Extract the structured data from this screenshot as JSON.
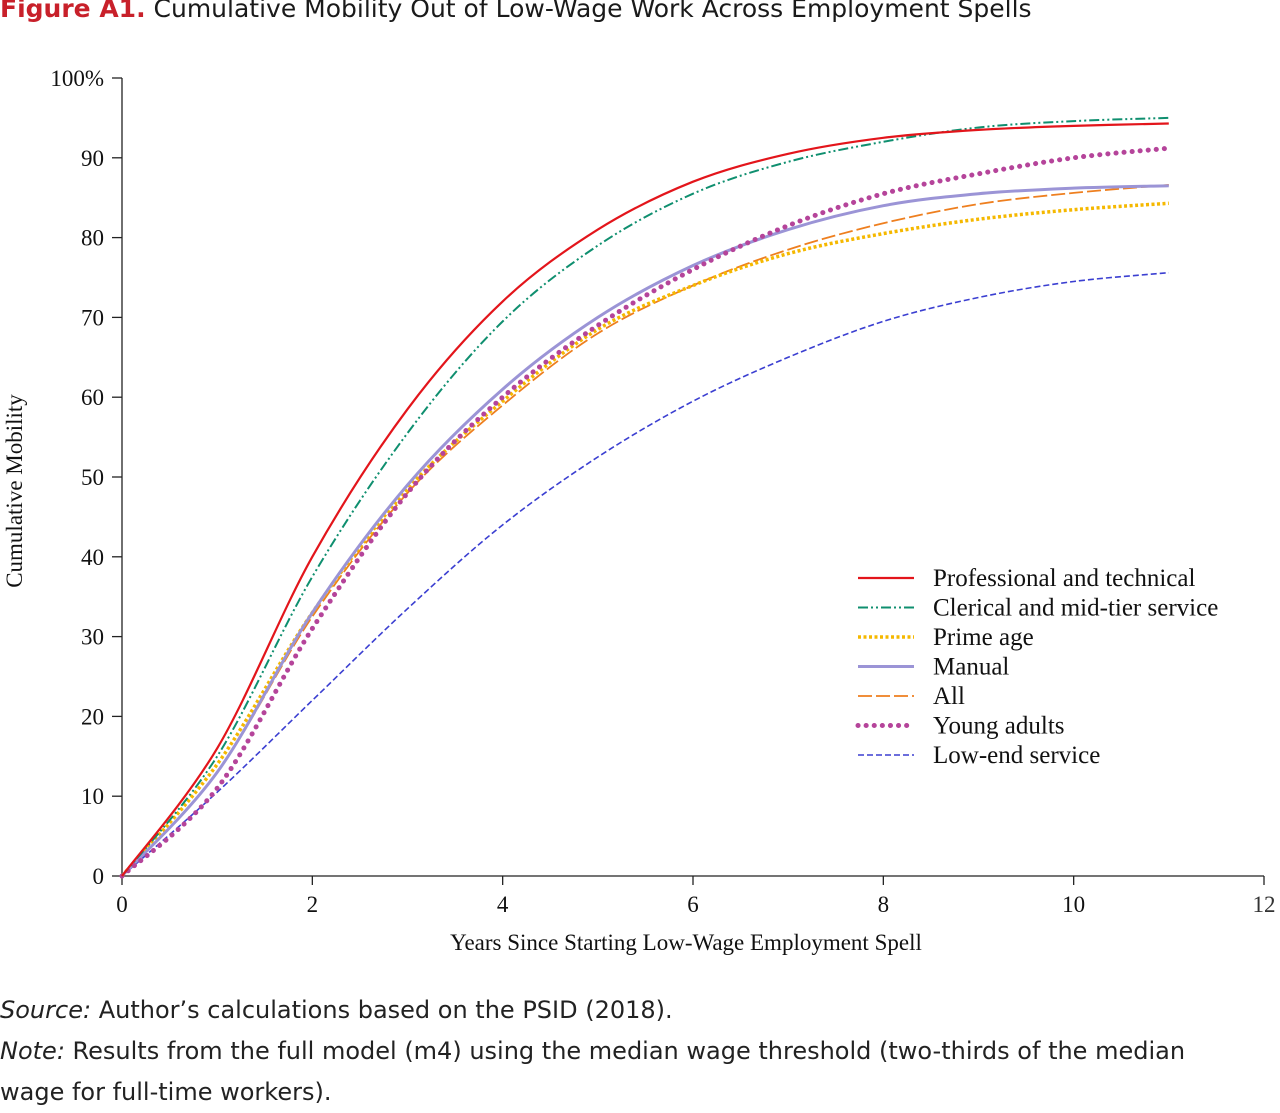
{
  "figure": {
    "label": "Figure A1.",
    "title": "Cumulative Mobility Out of Low-Wage Work Across Employment Spells"
  },
  "notes": {
    "source_label": "Source:",
    "source_text": "Author’s calculations based on the PSID (2018).",
    "note_label": "Note:",
    "note_line1": "Results from the full model (m4) using the median wage threshold (two-thirds of the median",
    "note_line2": "wage for full-time workers)."
  },
  "chart_data": {
    "type": "line",
    "xlabel": "Years Since Starting Low-Wage Employment Spell",
    "ylabel": "Cumulative Mobility",
    "xlim": [
      0,
      12
    ],
    "ylim": [
      0,
      100
    ],
    "x_ticks": [
      0,
      2,
      4,
      6,
      8,
      10,
      12
    ],
    "x_tick_labels": [
      "0",
      "2",
      "4",
      "6",
      "8",
      "10",
      "12"
    ],
    "y_ticks": [
      0,
      10,
      20,
      30,
      40,
      50,
      60,
      70,
      80,
      90,
      100
    ],
    "y_tick_labels": [
      "0",
      "10",
      "20",
      "30",
      "40",
      "50",
      "60",
      "70",
      "80",
      "90",
      "100%"
    ],
    "grid": false,
    "legend_position": "right",
    "x": [
      0,
      1,
      2,
      3,
      4,
      5,
      6,
      7,
      8,
      9,
      10,
      11
    ],
    "series": [
      {
        "name": "Professional and technical",
        "color": "#e3151b",
        "style": "solid",
        "values": [
          0,
          16,
          40,
          58.5,
          72,
          81,
          87,
          90.5,
          92.5,
          93.5,
          94,
          94.3
        ]
      },
      {
        "name": "Clerical and mid-tier service",
        "color": "#0f8f6f",
        "style": "dash-dot-dot",
        "values": [
          0,
          15,
          37.5,
          55.5,
          69.5,
          79,
          85.5,
          89.5,
          92,
          93.8,
          94.6,
          95
        ]
      },
      {
        "name": "Prime age",
        "color": "#f5b800",
        "style": "dotted",
        "values": [
          0,
          14,
          33,
          48.5,
          59.5,
          68.5,
          74,
          78,
          80.5,
          82.3,
          83.5,
          84.3
        ]
      },
      {
        "name": "Manual",
        "color": "#9b94d6",
        "style": "solid",
        "values": [
          0,
          13,
          33,
          49,
          61,
          70,
          76.5,
          81,
          84,
          85.5,
          86.2,
          86.5
        ]
      },
      {
        "name": "All",
        "color": "#ee7f1f",
        "style": "dashed",
        "values": [
          0,
          13,
          32.5,
          48,
          59,
          68,
          74,
          78.5,
          81.8,
          84.2,
          85.6,
          86.6
        ]
      },
      {
        "name": "Young adults",
        "color": "#b5449a",
        "style": "dotted",
        "values": [
          0,
          11,
          31,
          48,
          60,
          69,
          76,
          81.5,
          85.5,
          88,
          90,
          91.2
        ]
      },
      {
        "name": "Low-end service",
        "color": "#3b3fd1",
        "style": "dashed",
        "values": [
          0,
          10.5,
          22,
          33.5,
          44,
          52.5,
          59.5,
          65,
          69.5,
          72.5,
          74.5,
          75.6
        ]
      }
    ]
  }
}
